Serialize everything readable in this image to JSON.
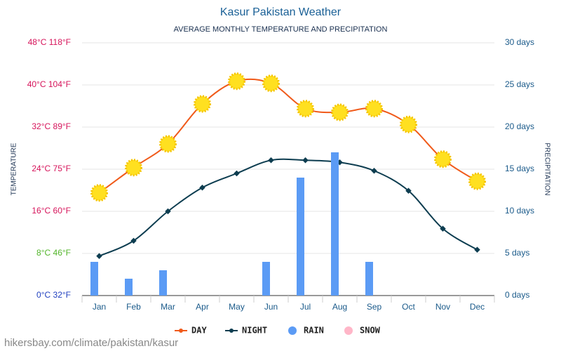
{
  "chart_data": {
    "type": "combo",
    "title": "Kasur Pakistan Weather",
    "subtitle": "AVERAGE MONTHLY TEMPERATURE AND PRECIPITATION",
    "ylabel": "TEMPERATURE",
    "y2label": "PRECIPITATION",
    "source": "hikersbay.com/climate/pakistan/kasur",
    "categories": [
      "Jan",
      "Feb",
      "Mar",
      "Apr",
      "May",
      "Jun",
      "Jul",
      "Aug",
      "Sep",
      "Oct",
      "Nov",
      "Dec"
    ],
    "series": [
      {
        "name": "DAY",
        "color": "#f05a1a",
        "values": [
          19.5,
          24.3,
          28.8,
          36.4,
          40.7,
          40.3,
          35.5,
          34.8,
          35.5,
          32.5,
          25.9,
          21.7
        ]
      },
      {
        "name": "NIGHT",
        "color": "#0d3d50",
        "values": [
          7.5,
          10.4,
          16,
          20.5,
          23.2,
          25.7,
          25.7,
          25.3,
          23.7,
          19.9,
          12.7,
          8.7
        ]
      },
      {
        "name": "RAIN",
        "color": "#5b9bf5",
        "axis": "y2",
        "values": [
          4,
          2,
          3,
          0,
          0,
          4,
          14,
          17,
          4,
          0,
          0,
          0
        ]
      },
      {
        "name": "SNOW",
        "color": "#ffb6c8",
        "axis": "y2",
        "values": [
          0,
          0,
          0,
          0,
          0,
          0,
          0,
          0,
          0,
          0,
          0,
          0
        ]
      }
    ],
    "ylim": [
      0,
      48
    ],
    "yticks": [
      {
        "value": 0,
        "label": "0°C 32°F"
      },
      {
        "value": 8,
        "label": "8°C 46°F"
      },
      {
        "value": 16,
        "label": "16°C 60°F"
      },
      {
        "value": 24,
        "label": "24°C 75°F"
      },
      {
        "value": 32,
        "label": "32°C 89°F"
      },
      {
        "value": 40,
        "label": "40°C 104°F"
      },
      {
        "value": 48,
        "label": "48°C 118°F"
      }
    ],
    "ytick_colors": [
      "#1f3fbf",
      "#52b52a",
      "#d6135a",
      "#d6135a",
      "#d6135a",
      "#d6135a",
      "#d6135a"
    ],
    "y2lim": [
      0,
      30
    ],
    "y2ticks": [
      {
        "value": 0,
        "label": "0 days"
      },
      {
        "value": 5,
        "label": "5 days"
      },
      {
        "value": 10,
        "label": "10 days"
      },
      {
        "value": 15,
        "label": "15 days"
      },
      {
        "value": 20,
        "label": "20 days"
      },
      {
        "value": 25,
        "label": "25 days"
      },
      {
        "value": 30,
        "label": "30 days"
      }
    ],
    "grid": true
  }
}
